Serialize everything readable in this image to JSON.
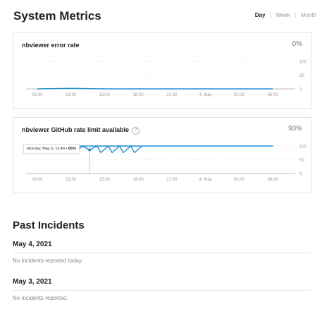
{
  "header": {
    "title": "System Metrics",
    "tabs": [
      {
        "label": "Day",
        "active": true
      },
      {
        "label": "Week",
        "active": false
      },
      {
        "label": "Month",
        "active": false
      }
    ]
  },
  "x_ticks": [
    "09:00",
    "12:00",
    "15:00",
    "18:00",
    "21:00",
    "4. May",
    "03:00",
    "06:00"
  ],
  "metrics": [
    {
      "title": "nbviewer error rate",
      "value": "0%",
      "y_ticks": [
        "100",
        "50",
        "0"
      ],
      "line_color": "#1f8ed0",
      "chart_data": {
        "type": "line",
        "x": [
          "09:00",
          "12:00",
          "15:00",
          "18:00",
          "21:00",
          "4. May",
          "03:00",
          "06:00"
        ],
        "values": [
          0,
          2,
          0,
          0,
          0,
          0,
          0,
          0
        ],
        "ylim": [
          0,
          100
        ]
      }
    },
    {
      "title": "nbviewer GitHub rate limit available",
      "value": "93%",
      "y_ticks": [
        "100",
        "50",
        "0"
      ],
      "line_color": "#1f8ed0",
      "tooltip": {
        "label": "Monday, May 3, 13:40 •",
        "value": "86%"
      },
      "chart_data": {
        "type": "line",
        "x": [
          "08:00",
          "11:00",
          "12:00",
          "12:40",
          "13:00",
          "13:40",
          "14:20",
          "14:40",
          "15:20",
          "15:40",
          "16:20",
          "16:40",
          "17:20",
          "17:40",
          "18:20",
          "19:00",
          "21:00",
          "4. May",
          "03:00",
          "06:00",
          "08:00"
        ],
        "values": [
          100,
          100,
          100,
          86,
          100,
          86,
          100,
          76,
          100,
          76,
          100,
          76,
          100,
          76,
          100,
          100,
          100,
          100,
          100,
          100,
          100
        ],
        "ylim": [
          0,
          100
        ]
      }
    }
  ],
  "incidents": {
    "title": "Past Incidents",
    "days": [
      {
        "date": "May 4, 2021",
        "note": "No incidents reported today."
      },
      {
        "date": "May 3, 2021",
        "note": "No incidents reported."
      }
    ]
  }
}
